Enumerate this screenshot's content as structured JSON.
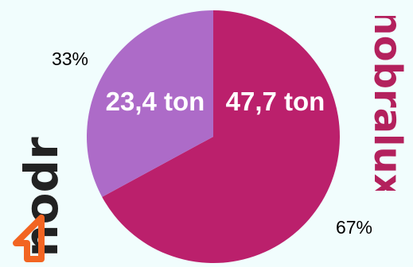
{
  "chart_data": {
    "type": "pie",
    "slices": [
      {
        "value": 47.7,
        "value_label": "47,7 ton",
        "percent_label": "67%",
        "color": "#bb206c"
      },
      {
        "value": 23.4,
        "value_label": "23,4 ton",
        "percent_label": "33%",
        "color": "#ad6bc8"
      }
    ],
    "start_angle_deg": 0,
    "direction": "clockwise"
  },
  "logos": {
    "left": {
      "text": "nodr",
      "text_color": "#222222",
      "icon_color": "#f26522"
    },
    "right": {
      "text": "nobralux",
      "text_color": "#b3215d",
      "dot_color": "#b3215d"
    }
  },
  "background": "#f1fdfd"
}
